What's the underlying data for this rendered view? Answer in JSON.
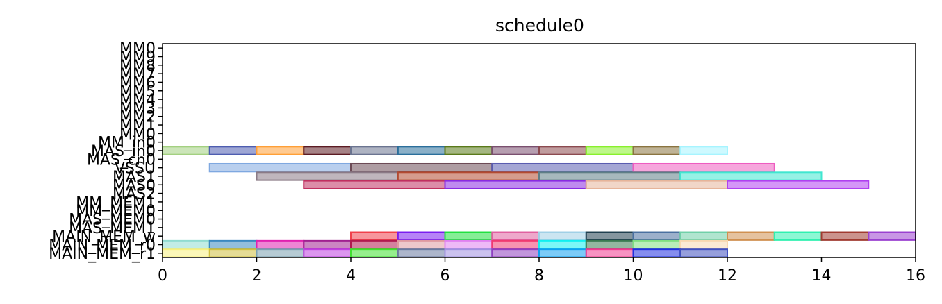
{
  "chart_data": {
    "type": "gantt",
    "title": "schedule0",
    "xlim": [
      0,
      16
    ],
    "x_ticks": [
      0,
      2,
      4,
      6,
      8,
      10,
      12,
      14,
      16
    ],
    "rows": [
      "MM0",
      "MM9",
      "MM8",
      "MM7",
      "MM6",
      "MM5",
      "MM4",
      "MM3",
      "MM2",
      "MM1",
      "MM0",
      "MM_in0",
      "MAS_in0",
      "MAS_cn0",
      "VSSU",
      "MAS1",
      "MAS0",
      "MAS2",
      "MM_MEM1",
      "MM_MEM0",
      "MAS_MEM0",
      "MAS_MEM1",
      "MAIN_MEM_w",
      "MAIN_MEM_r0",
      "MAIN_MEM_r1"
    ],
    "bars": [
      {
        "row": 12,
        "start": 0,
        "end": 1,
        "color": "#a3d080"
      },
      {
        "row": 12,
        "start": 1,
        "end": 2,
        "color": "#4e5db0"
      },
      {
        "row": 12,
        "start": 2,
        "end": 3,
        "color": "#ff9f36"
      },
      {
        "row": 12,
        "start": 3,
        "end": 4,
        "color": "#5c1b23"
      },
      {
        "row": 12,
        "start": 4,
        "end": 5,
        "color": "#6b7490"
      },
      {
        "row": 12,
        "start": 5,
        "end": 6,
        "color": "#2b6f9b"
      },
      {
        "row": 12,
        "start": 6,
        "end": 7,
        "color": "#5a7a1a"
      },
      {
        "row": 12,
        "start": 7,
        "end": 8,
        "color": "#7a4f6f"
      },
      {
        "row": 12,
        "start": 8,
        "end": 9,
        "color": "#8c4a4f"
      },
      {
        "row": 12,
        "start": 9,
        "end": 10,
        "color": "#88f02c"
      },
      {
        "row": 12,
        "start": 10,
        "end": 11,
        "color": "#8a7440"
      },
      {
        "row": 12,
        "start": 11,
        "end": 12,
        "color": "#a6f4ff"
      },
      {
        "row": 14,
        "start": 1,
        "end": 4,
        "color": "#7fa8e0"
      },
      {
        "row": 14,
        "start": 4,
        "end": 7,
        "color": "#6c4a55"
      },
      {
        "row": 14,
        "start": 7,
        "end": 10,
        "color": "#5a5cb0"
      },
      {
        "row": 14,
        "start": 10,
        "end": 13,
        "color": "#ee5cc0"
      },
      {
        "row": 15,
        "start": 2,
        "end": 5,
        "color": "#8a7a86"
      },
      {
        "row": 15,
        "start": 5,
        "end": 8,
        "color": "#b34a30"
      },
      {
        "row": 15,
        "start": 8,
        "end": 11,
        "color": "#5e7e86"
      },
      {
        "row": 15,
        "start": 11,
        "end": 14,
        "color": "#40e6d0"
      },
      {
        "row": 16,
        "start": 3,
        "end": 6,
        "color": "#c03060"
      },
      {
        "row": 16,
        "start": 6,
        "end": 9,
        "color": "#8a2be2"
      },
      {
        "row": 16,
        "start": 9,
        "end": 12,
        "color": "#e6b49a"
      },
      {
        "row": 16,
        "start": 12,
        "end": 15,
        "color": "#b040f0"
      },
      {
        "row": 22,
        "start": 4,
        "end": 5,
        "color": "#f0404a"
      },
      {
        "row": 22,
        "start": 5,
        "end": 6,
        "color": "#7a1cf0"
      },
      {
        "row": 22,
        "start": 6,
        "end": 7,
        "color": "#20e040"
      },
      {
        "row": 22,
        "start": 7,
        "end": 8,
        "color": "#e060a0"
      },
      {
        "row": 22,
        "start": 8,
        "end": 9,
        "color": "#a0d0e6"
      },
      {
        "row": 22,
        "start": 9,
        "end": 10,
        "color": "#204050"
      },
      {
        "row": 22,
        "start": 10,
        "end": 11,
        "color": "#4a70a0"
      },
      {
        "row": 22,
        "start": 11,
        "end": 12,
        "color": "#70d0a8"
      },
      {
        "row": 22,
        "start": 12,
        "end": 13,
        "color": "#d09050"
      },
      {
        "row": 22,
        "start": 13,
        "end": 14,
        "color": "#30f0b0"
      },
      {
        "row": 22,
        "start": 14,
        "end": 15,
        "color": "#a03a30"
      },
      {
        "row": 22,
        "start": 15,
        "end": 16,
        "color": "#9a40d0"
      },
      {
        "row": 23,
        "start": 0,
        "end": 1,
        "color": "#90dcd0"
      },
      {
        "row": 23,
        "start": 1,
        "end": 2,
        "color": "#3a88c0"
      },
      {
        "row": 23,
        "start": 2,
        "end": 3,
        "color": "#e020b0"
      },
      {
        "row": 23,
        "start": 3,
        "end": 4,
        "color": "#a02090"
      },
      {
        "row": 23,
        "start": 4,
        "end": 5,
        "color": "#b01a50"
      },
      {
        "row": 23,
        "start": 5,
        "end": 6,
        "color": "#e09aa0"
      },
      {
        "row": 23,
        "start": 6,
        "end": 7,
        "color": "#e080f0"
      },
      {
        "row": 23,
        "start": 7,
        "end": 8,
        "color": "#f03a70"
      },
      {
        "row": 23,
        "start": 8,
        "end": 9,
        "color": "#10f0f0"
      },
      {
        "row": 23,
        "start": 9,
        "end": 10,
        "color": "#3a7a50"
      },
      {
        "row": 23,
        "start": 10,
        "end": 11,
        "color": "#80e080"
      },
      {
        "row": 23,
        "start": 11,
        "end": 12,
        "color": "#f8d8b0"
      },
      {
        "row": 24,
        "start": 0,
        "end": 1,
        "color": "#f8f080"
      },
      {
        "row": 24,
        "start": 1,
        "end": 2,
        "color": "#d0c040"
      },
      {
        "row": 24,
        "start": 2,
        "end": 3,
        "color": "#7aa0b0"
      },
      {
        "row": 24,
        "start": 3,
        "end": 4,
        "color": "#c040e0"
      },
      {
        "row": 24,
        "start": 4,
        "end": 5,
        "color": "#40e030"
      },
      {
        "row": 24,
        "start": 5,
        "end": 6,
        "color": "#6a7aa0"
      },
      {
        "row": 24,
        "start": 6,
        "end": 7,
        "color": "#a090e0"
      },
      {
        "row": 24,
        "start": 7,
        "end": 8,
        "color": "#9040c0"
      },
      {
        "row": 24,
        "start": 8,
        "end": 9,
        "color": "#10a0f0"
      },
      {
        "row": 24,
        "start": 9,
        "end": 10,
        "color": "#f03a90"
      },
      {
        "row": 24,
        "start": 10,
        "end": 11,
        "color": "#2030e0"
      },
      {
        "row": 24,
        "start": 11,
        "end": 12,
        "color": "#4050c0"
      }
    ],
    "bar_opacity": 0.55,
    "grid": false,
    "legend": "none"
  }
}
